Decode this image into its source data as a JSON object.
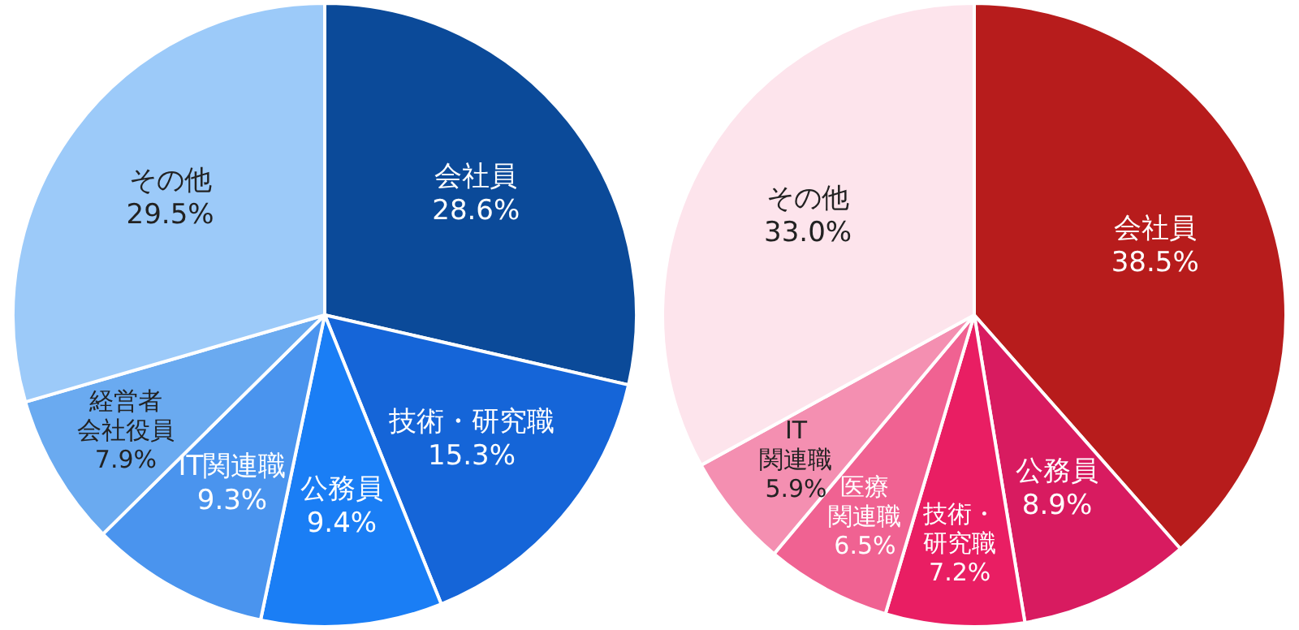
{
  "chart_data": [
    {
      "type": "pie",
      "categories": [
        "会社員",
        "技術・研究職",
        "公務員",
        "IT関連職",
        "経営者会社役員",
        "その他"
      ],
      "values": [
        28.6,
        15.3,
        9.4,
        9.3,
        7.9,
        29.5
      ],
      "colors": [
        "#0b4a99",
        "#1565d8",
        "#1a7ef5",
        "#4a94ee",
        "#6aaaf0",
        "#9ccaf9"
      ],
      "value_labels": [
        "28.6%",
        "15.3%",
        "9.4%",
        "9.3%",
        "7.9%",
        "29.5%"
      ],
      "legend": false
    },
    {
      "type": "pie",
      "categories": [
        "会社員",
        "公務員",
        "技術・研究職",
        "医療関連職",
        "IT関連職",
        "その他"
      ],
      "values": [
        38.5,
        8.9,
        7.2,
        6.5,
        5.9,
        33.0
      ],
      "colors": [
        "#b71c1c",
        "#d81b60",
        "#e91e63",
        "#f06292",
        "#f48fb1",
        "#fde4ec"
      ],
      "value_labels": [
        "38.5%",
        "8.9%",
        "7.2%",
        "6.5%",
        "5.9%",
        "33.0%"
      ],
      "legend": false
    }
  ]
}
